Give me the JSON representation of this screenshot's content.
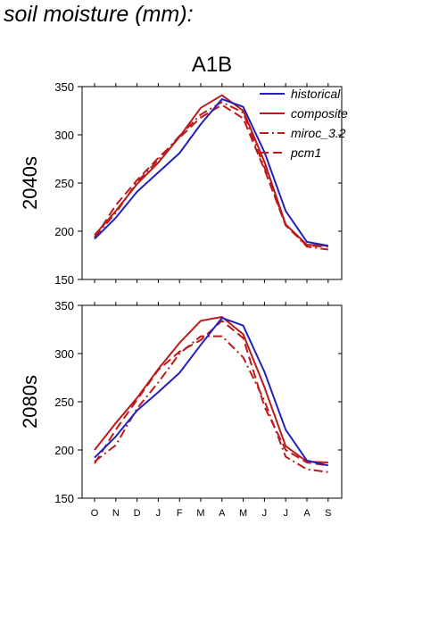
{
  "page_title": "soil moisture (mm):",
  "scenario": "A1B",
  "chart_data": [
    {
      "type": "line",
      "panel_label": "2040s",
      "categories": [
        "O",
        "N",
        "D",
        "J",
        "F",
        "M",
        "A",
        "M",
        "J",
        "J",
        "A",
        "S"
      ],
      "ylim": [
        150,
        350
      ],
      "yticks": [
        150,
        200,
        250,
        300,
        350
      ],
      "legend_position": "top-right",
      "series": [
        {
          "name": "historical",
          "color": "#2222bb",
          "dash": "solid",
          "values": [
            192,
            214,
            241,
            261,
            281,
            311,
            337,
            329,
            282,
            221,
            189,
            185
          ]
        },
        {
          "name": "composite",
          "color": "#bb1a1a",
          "dash": "solid",
          "values": [
            196,
            221,
            249,
            271,
            298,
            328,
            341,
            325,
            272,
            207,
            186,
            185
          ]
        },
        {
          "name": "miroc_3.2",
          "color": "#bb1a1a",
          "dash": "dashdot",
          "values": [
            194,
            219,
            251,
            274,
            299,
            321,
            334,
            323,
            266,
            207,
            184,
            181
          ]
        },
        {
          "name": "pcm1",
          "color": "#bb1a1a",
          "dash": "dashed",
          "values": [
            193,
            227,
            253,
            276,
            297,
            318,
            331,
            317,
            264,
            206,
            185,
            184
          ]
        }
      ]
    },
    {
      "type": "line",
      "panel_label": "2080s",
      "categories": [
        "O",
        "N",
        "D",
        "J",
        "F",
        "M",
        "A",
        "M",
        "J",
        "J",
        "A",
        "S"
      ],
      "ylim": [
        150,
        350
      ],
      "yticks": [
        150,
        200,
        250,
        300,
        350
      ],
      "series": [
        {
          "name": "historical",
          "color": "#2222bb",
          "dash": "solid",
          "values": [
            192,
            214,
            241,
            260,
            280,
            309,
            337,
            329,
            281,
            221,
            189,
            184
          ]
        },
        {
          "name": "composite",
          "color": "#bb1a1a",
          "dash": "solid",
          "values": [
            200,
            228,
            254,
            284,
            311,
            334,
            338,
            320,
            265,
            204,
            188,
            187
          ]
        },
        {
          "name": "miroc_3.2",
          "color": "#bb1a1a",
          "dash": "dashdot",
          "values": [
            188,
            205,
            243,
            270,
            300,
            318,
            318,
            296,
            251,
            193,
            180,
            177
          ]
        },
        {
          "name": "pcm1",
          "color": "#bb1a1a",
          "dash": "dashed",
          "values": [
            186,
            221,
            252,
            283,
            302,
            314,
            334,
            316,
            245,
            200,
            187,
            184
          ]
        }
      ]
    }
  ]
}
